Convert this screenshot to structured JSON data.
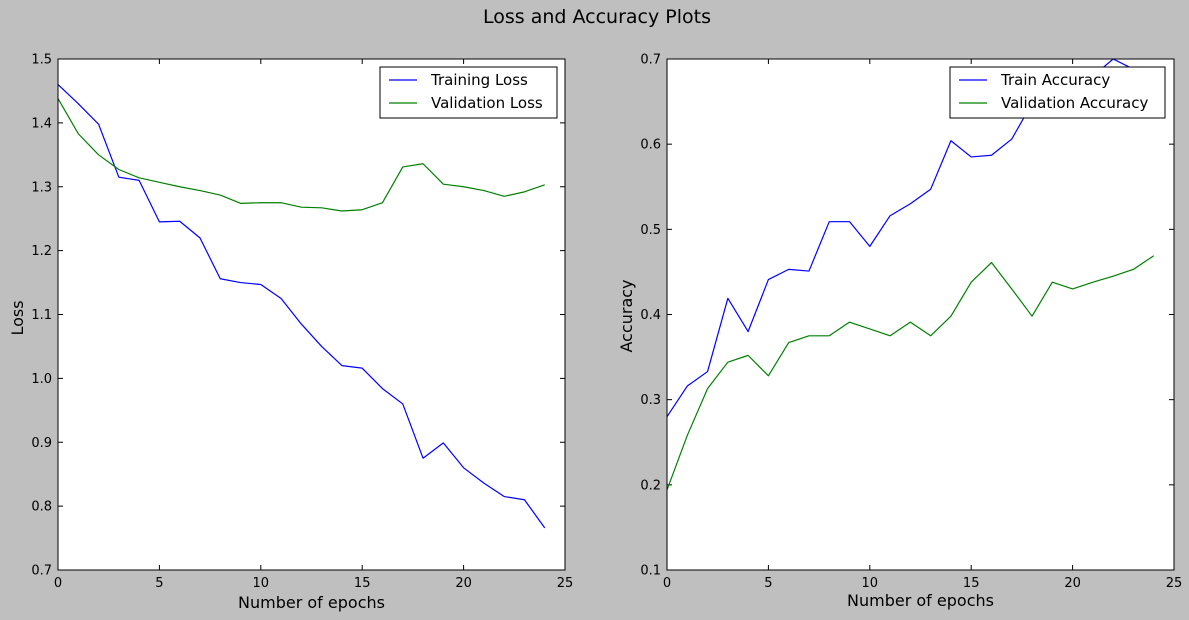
{
  "figure": {
    "suptitle": "Loss and Accuracy Plots",
    "background_color": "#bfbfbf",
    "axes_background_color": "#ffffff"
  },
  "chart_data": [
    {
      "type": "line",
      "title": "",
      "xlabel": "Number of epochs",
      "ylabel": "Loss",
      "xlim": [
        0,
        25
      ],
      "ylim": [
        0.7,
        1.5
      ],
      "xticks": [
        0,
        5,
        10,
        15,
        20,
        25
      ],
      "yticks": [
        0.7,
        0.8,
        0.9,
        1.0,
        1.1,
        1.2,
        1.3,
        1.4,
        1.5
      ],
      "ytick_labels": [
        "0.7",
        "0.8",
        "0.9",
        "1.0",
        "1.1",
        "1.2",
        "1.3",
        "1.4",
        "1.5"
      ],
      "grid": false,
      "legend_position": "top-right",
      "x": [
        0,
        1,
        2,
        3,
        4,
        5,
        6,
        7,
        8,
        9,
        10,
        11,
        12,
        13,
        14,
        15,
        16,
        17,
        18,
        19,
        20,
        21,
        22,
        23,
        24
      ],
      "series": [
        {
          "name": "Training Loss",
          "color": "#0000ff",
          "values": [
            1.46,
            1.43,
            1.398,
            1.315,
            1.31,
            1.245,
            1.246,
            1.22,
            1.156,
            1.15,
            1.147,
            1.125,
            1.085,
            1.05,
            1.02,
            1.016,
            0.984,
            0.96,
            0.875,
            0.899,
            0.86,
            0.836,
            0.815,
            0.81,
            0.766
          ]
        },
        {
          "name": "Validation Loss",
          "color": "#008000",
          "values": [
            1.438,
            1.383,
            1.35,
            1.327,
            1.314,
            1.307,
            1.3,
            1.294,
            1.287,
            1.274,
            1.275,
            1.275,
            1.268,
            1.267,
            1.262,
            1.264,
            1.275,
            1.331,
            1.336,
            1.304,
            1.3,
            1.294,
            1.285,
            1.292,
            1.303
          ]
        }
      ]
    },
    {
      "type": "line",
      "title": "",
      "xlabel": "Number of epochs",
      "ylabel": "Accuracy",
      "xlim": [
        0,
        25
      ],
      "ylim": [
        0.1,
        0.7
      ],
      "xticks": [
        0,
        5,
        10,
        15,
        20,
        25
      ],
      "yticks": [
        0.1,
        0.2,
        0.3,
        0.4,
        0.5,
        0.6,
        0.7
      ],
      "ytick_labels": [
        "0.1",
        "0.2",
        "0.3",
        "0.4",
        "0.5",
        "0.6",
        "0.7"
      ],
      "grid": false,
      "legend_position": "top-right",
      "x": [
        0,
        1,
        2,
        3,
        4,
        5,
        6,
        7,
        8,
        9,
        10,
        11,
        12,
        13,
        14,
        15,
        16,
        17,
        18,
        19,
        20,
        21,
        22,
        23,
        24
      ],
      "series": [
        {
          "name": "Train Accuracy",
          "color": "#0000ff",
          "values": [
            0.28,
            0.316,
            0.333,
            0.419,
            0.38,
            0.441,
            0.453,
            0.451,
            0.509,
            0.509,
            0.48,
            0.516,
            0.53,
            0.547,
            0.604,
            0.585,
            0.587,
            0.606,
            0.648,
            0.66,
            0.67,
            0.68,
            0.7,
            0.688,
            0.69
          ]
        },
        {
          "name": "Validation Accuracy",
          "color": "#008000",
          "values": [
            0.194,
            0.258,
            0.313,
            0.344,
            0.352,
            0.328,
            0.367,
            0.375,
            0.375,
            0.391,
            0.383,
            0.375,
            0.391,
            0.375,
            0.398,
            0.438,
            0.461,
            0.43,
            0.398,
            0.438,
            0.43,
            0.438,
            0.445,
            0.453,
            0.469
          ]
        }
      ]
    }
  ]
}
